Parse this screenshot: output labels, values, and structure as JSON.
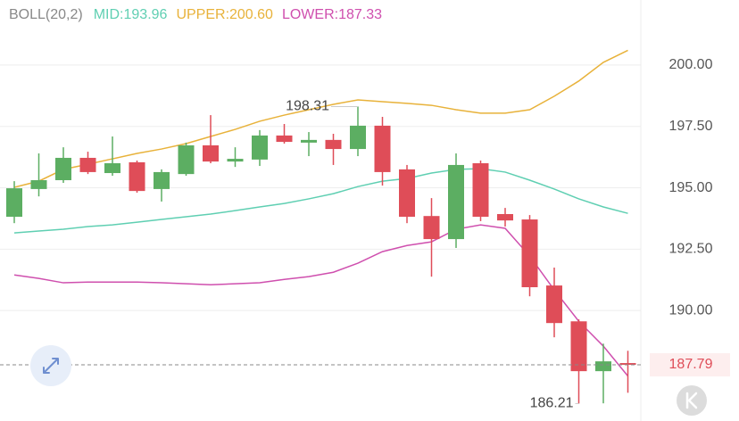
{
  "chart_data": {
    "type": "candlestick",
    "indicator": "BOLL(20,2)",
    "open": [
      193.82,
      194.95,
      195.31,
      196.22,
      195.6,
      196.04,
      194.95,
      195.56,
      196.73,
      196.07,
      196.15,
      197.13,
      196.84,
      196.95,
      196.58,
      197.53,
      195.75,
      193.85,
      192.91,
      196.0,
      193.93,
      193.71,
      191.02,
      189.56,
      187.53,
      187.86
    ],
    "high": [
      195.27,
      196.4,
      196.65,
      196.47,
      197.09,
      196.11,
      195.75,
      196.84,
      197.96,
      196.65,
      197.35,
      197.6,
      197.27,
      197.2,
      198.31,
      197.89,
      195.93,
      194.58,
      196.4,
      196.11,
      194.18,
      193.89,
      191.75,
      189.64,
      188.65,
      188.36
    ],
    "low": [
      193.56,
      194.65,
      195.2,
      195.56,
      195.49,
      194.8,
      194.44,
      195.49,
      196.0,
      195.85,
      195.89,
      196.8,
      196.29,
      195.93,
      196.29,
      195.09,
      193.56,
      191.38,
      192.55,
      193.64,
      193.42,
      190.58,
      188.91,
      186.21,
      186.22,
      186.65
    ],
    "close": [
      194.98,
      195.31,
      196.22,
      195.64,
      196.0,
      194.87,
      195.64,
      196.73,
      196.07,
      196.18,
      197.13,
      196.87,
      196.95,
      196.58,
      197.53,
      195.64,
      193.82,
      192.91,
      195.93,
      193.82,
      193.67,
      190.95,
      189.49,
      187.53,
      187.93,
      187.79
    ],
    "up_color": "#5cae62",
    "down_color": "#df4d58",
    "series": [
      {
        "name": "MID",
        "legend_label": "MID:193.96",
        "color": "#5fcfb2",
        "values": [
          193.16,
          193.24,
          193.31,
          193.42,
          193.49,
          193.6,
          193.71,
          193.82,
          193.93,
          194.07,
          194.22,
          194.36,
          194.55,
          194.76,
          195.05,
          195.27,
          195.38,
          195.6,
          195.75,
          195.78,
          195.64,
          195.31,
          194.95,
          194.55,
          194.22,
          193.96
        ]
      },
      {
        "name": "UPPER",
        "legend_label": "UPPER:200.60",
        "color": "#e8b23a",
        "values": [
          195.02,
          195.27,
          195.75,
          195.96,
          196.18,
          196.4,
          196.58,
          196.8,
          197.09,
          197.38,
          197.71,
          197.96,
          198.18,
          198.4,
          198.58,
          198.51,
          198.44,
          198.36,
          198.18,
          198.04,
          198.04,
          198.18,
          198.73,
          199.35,
          200.11,
          200.6
        ]
      },
      {
        "name": "LOWER",
        "legend_label": "LOWER:187.33",
        "color": "#cf4fae",
        "values": [
          191.45,
          191.31,
          191.13,
          191.16,
          191.16,
          191.16,
          191.13,
          191.09,
          191.05,
          191.09,
          191.13,
          191.27,
          191.38,
          191.56,
          191.93,
          192.4,
          192.65,
          192.8,
          193.31,
          193.49,
          193.35,
          192.22,
          190.84,
          189.56,
          188.55,
          187.33
        ]
      }
    ],
    "ylim": [
      185.5,
      202.65
    ],
    "yticks": [
      {
        "value": 190,
        "label": "190.00"
      },
      {
        "value": 192.5,
        "label": "192.50"
      },
      {
        "value": 195,
        "label": "195.00"
      },
      {
        "value": 197.5,
        "label": "197.50"
      },
      {
        "value": 200,
        "label": "200.00"
      }
    ],
    "grid": true,
    "legend_colors": {
      "indicator": "#888888"
    }
  }
}
